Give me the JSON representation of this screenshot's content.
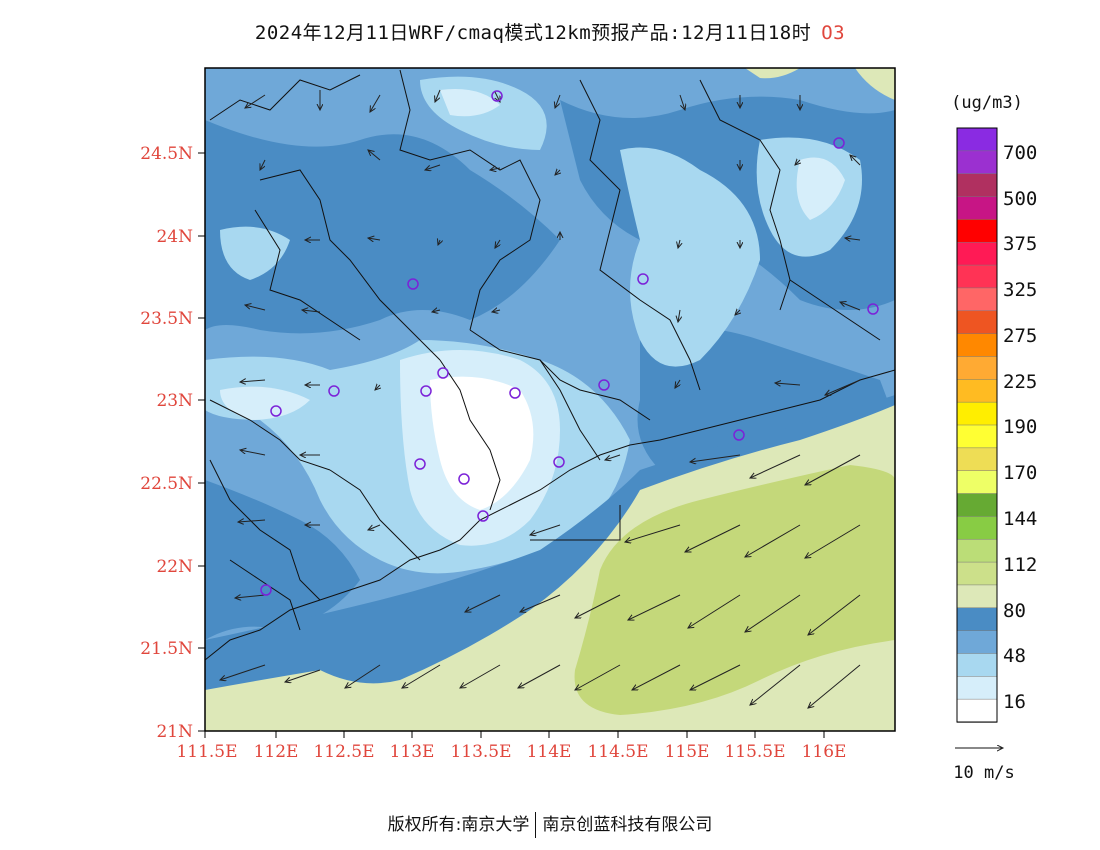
{
  "title": {
    "text": "2024年12月11日WRF/cmaq模式12km预报产品:12月11日18时",
    "species": "O3"
  },
  "unit_label": "(ug/m3)",
  "axes": {
    "lat_labels": [
      "24.5N",
      "24N",
      "23.5N",
      "23N",
      "22.5N",
      "22N",
      "21.5N",
      "21N"
    ],
    "lon_labels": [
      "111.5E",
      "112E",
      "112.5E",
      "113E",
      "113.5E",
      "114E",
      "114.5E",
      "115E",
      "115.5E",
      "116E"
    ],
    "label_color": "#e0463c"
  },
  "legend": {
    "bands": [
      {
        "color": "#8a2be2"
      },
      {
        "color": "#9b30d0"
      },
      {
        "color": "#b03060"
      },
      {
        "color": "#c71585"
      },
      {
        "color": "#ff0000"
      },
      {
        "color": "#ff1a55"
      },
      {
        "color": "#ff3355"
      },
      {
        "color": "#ff6666"
      },
      {
        "color": "#ee5522"
      },
      {
        "color": "#ff8800"
      },
      {
        "color": "#ffaa33"
      },
      {
        "color": "#ffbb22"
      },
      {
        "color": "#ffee00"
      },
      {
        "color": "#ffff33"
      },
      {
        "color": "#eedd55"
      },
      {
        "color": "#eeff66"
      },
      {
        "color": "#66aa33"
      },
      {
        "color": "#88cc44"
      },
      {
        "color": "#bbdd77"
      },
      {
        "color": "#cce08a"
      },
      {
        "color": "#dde8b8"
      },
      {
        "color": "#4a8cc4"
      },
      {
        "color": "#6fa8d8"
      },
      {
        "color": "#a8d8f0"
      },
      {
        "color": "#d6eefa"
      },
      {
        "color": "#ffffff"
      }
    ],
    "labels": [
      "700",
      "500",
      "375",
      "325",
      "275",
      "225",
      "190",
      "170",
      "144",
      "112",
      "80",
      "48",
      "16"
    ]
  },
  "wind_scale_label": "10 m/s",
  "footer": {
    "left": "版权所有:南京大学",
    "right": "南京创蓝科技有限公司"
  }
}
